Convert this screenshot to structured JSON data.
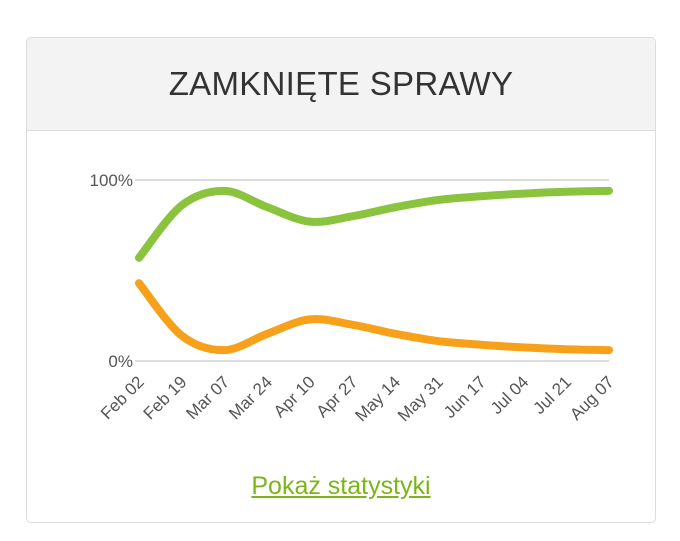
{
  "card": {
    "title": "ZAMKNIĘTE SPRAWY",
    "link_label": "Pokaż statystyki"
  },
  "chart_data": {
    "type": "line",
    "x": [
      "Feb 02",
      "Feb 19",
      "Mar 07",
      "Mar 24",
      "Apr 10",
      "Apr 27",
      "May 14",
      "May 31",
      "Jun 17",
      "Jul 04",
      "Jul 21",
      "Aug 07"
    ],
    "y_ticks": [
      "100%",
      "0%"
    ],
    "ylim": [
      0,
      100
    ],
    "grid": "horizontal at tick values",
    "legend": "none",
    "series": [
      {
        "color": "#8ac43f",
        "values": [
          57,
          86,
          94,
          85,
          77,
          80,
          85,
          89,
          91,
          92.5,
          93.5,
          94
        ]
      },
      {
        "color": "#f7a11a",
        "values": [
          43,
          14,
          6,
          15,
          23,
          20,
          15,
          11,
          9,
          7.5,
          6.5,
          6
        ]
      }
    ]
  }
}
